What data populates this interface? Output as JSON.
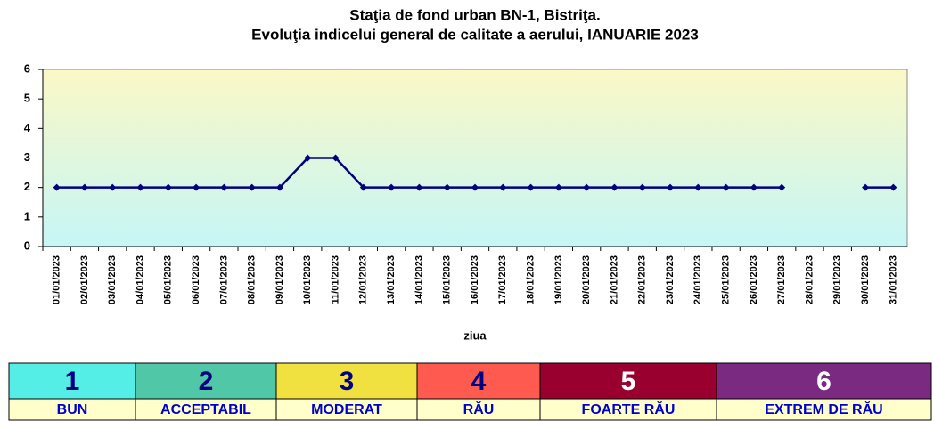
{
  "chart_data": {
    "type": "line",
    "title": [
      "Staţia de fond urban BN-1, Bistriţa.",
      "Evoluţia indicelui general de calitate a aerului, IANUARIE 2023"
    ],
    "x_label": "ziua",
    "categories": [
      "01/01/2023",
      "02/01/2023",
      "03/01/2023",
      "04/01/2023",
      "05/01/2023",
      "06/01/2023",
      "07/01/2023",
      "08/01/2023",
      "09/01/2023",
      "10/01/2023",
      "11/01/2023",
      "12/01/2023",
      "13/01/2023",
      "14/01/2023",
      "15/01/2023",
      "16/01/2023",
      "17/01/2023",
      "18/01/2023",
      "19/01/2023",
      "20/01/2023",
      "21/01/2023",
      "22/01/2023",
      "23/01/2023",
      "24/01/2023",
      "25/01/2023",
      "26/01/2023",
      "27/01/2023",
      "28/01/2023",
      "29/01/2023",
      "30/01/2023",
      "31/01/2023"
    ],
    "values": [
      2,
      2,
      2,
      2,
      2,
      2,
      2,
      2,
      2,
      3,
      3,
      2,
      2,
      2,
      2,
      2,
      2,
      2,
      2,
      2,
      2,
      2,
      2,
      2,
      2,
      2,
      2,
      null,
      null,
      2,
      2
    ],
    "color": "#000080",
    "ylim": [
      0,
      6
    ],
    "yticks": [
      0,
      1,
      2,
      3,
      4,
      5,
      6
    ],
    "grid": false
  },
  "legend": [
    {
      "index": 1,
      "label": "BUN",
      "color": "#55eee6",
      "text_color": "#000080"
    },
    {
      "index": 2,
      "label": "ACCEPTABIL",
      "color": "#50c8a8",
      "text_color": "#000080"
    },
    {
      "index": 3,
      "label": "MODERAT",
      "color": "#f0e040",
      "text_color": "#000080"
    },
    {
      "index": 4,
      "label": "RĂU",
      "color": "#ff5a50",
      "text_color": "#000080"
    },
    {
      "index": 5,
      "label": "FOARTE RĂU",
      "color": "#990030",
      "text_color": "#ffffff"
    },
    {
      "index": 6,
      "label": "EXTREM DE RĂU",
      "color": "#7a2a80",
      "text_color": "#ffffff"
    }
  ]
}
